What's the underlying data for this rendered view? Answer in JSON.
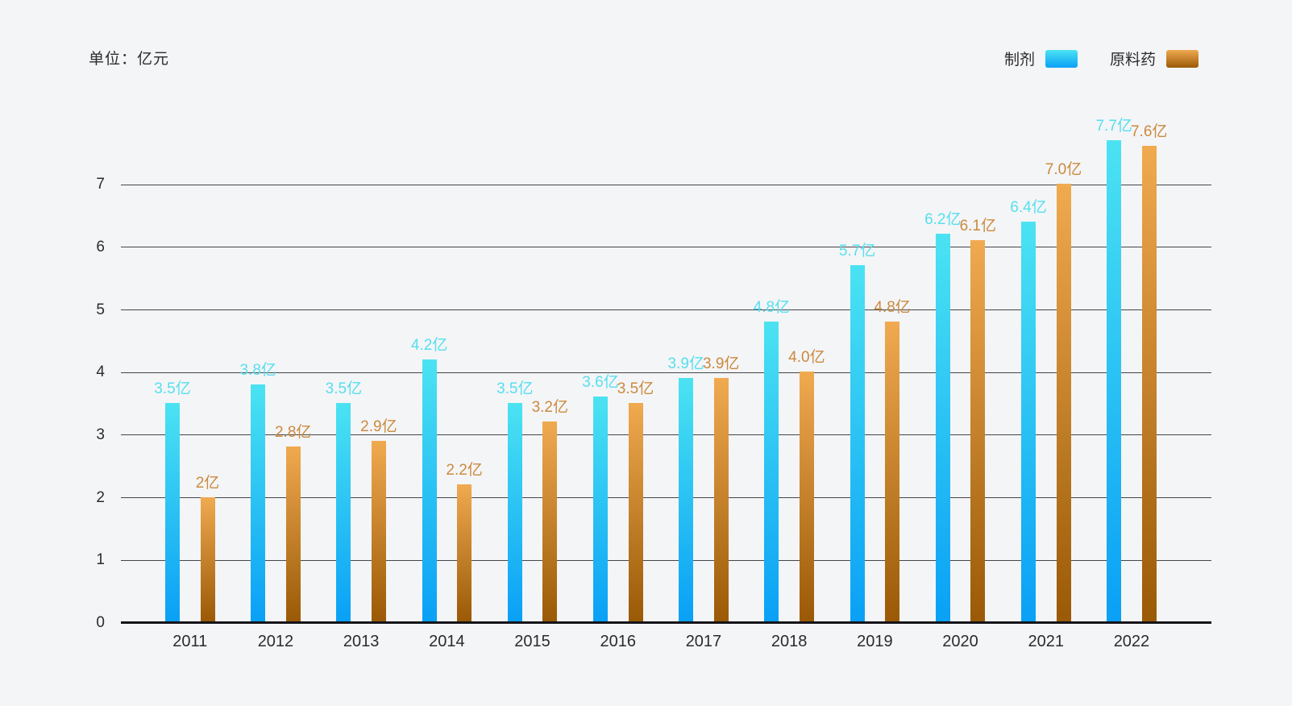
{
  "unit_label": "单位：亿元",
  "colors": {
    "background": "#f4f5f7",
    "axis_text": "#2b2b2e",
    "gridline": "#45454b",
    "axis_line": "#141418",
    "formulation_bar_top": "#4be3f2",
    "formulation_bar_bottom": "#09a0f6",
    "api_bar_top": "#f0aa50",
    "api_bar_bottom": "#9a5906",
    "formulation_label": "#55dfee",
    "api_label": "#cb8a3e"
  },
  "legend": {
    "items": [
      {
        "key": "formulation",
        "label": "制剂"
      },
      {
        "key": "api",
        "label": "原料药"
      }
    ]
  },
  "chart_data": {
    "type": "bar",
    "title": "",
    "unit": "亿元",
    "categories": [
      "2011",
      "2012",
      "2013",
      "2014",
      "2015",
      "2016",
      "2017",
      "2018",
      "2019",
      "2020",
      "2021",
      "2022"
    ],
    "series": [
      {
        "name": "制剂",
        "key": "formulation",
        "values": [
          3.5,
          3.8,
          3.5,
          4.2,
          3.5,
          3.6,
          3.9,
          4.8,
          5.7,
          6.2,
          6.4,
          7.7
        ],
        "data_labels": [
          "3.5亿",
          "3.8亿",
          "3.5亿",
          "4.2亿",
          "3.5亿",
          "3.6亿",
          "3.9亿",
          "4.8亿",
          "5.7亿",
          "6.2亿",
          "6.4亿",
          "7.7亿"
        ]
      },
      {
        "name": "原料药",
        "key": "api",
        "values": [
          2,
          2.8,
          2.9,
          2.2,
          3.2,
          3.5,
          3.9,
          4.0,
          4.8,
          6.1,
          7.0,
          7.6
        ],
        "data_labels": [
          "2亿",
          "2.8亿",
          "2.9亿",
          "2.2亿",
          "3.2亿",
          "3.5亿",
          "3.9亿",
          "4.0亿",
          "4.8亿",
          "6.1亿",
          "7.0亿",
          "7.6亿"
        ]
      }
    ],
    "y_ticks": [
      "0",
      "1",
      "2",
      "3",
      "4",
      "5",
      "6",
      "7"
    ],
    "ylim": [
      0,
      7
    ],
    "xlabel": "",
    "ylabel": "",
    "grid": true,
    "legend_position": "top-right"
  }
}
